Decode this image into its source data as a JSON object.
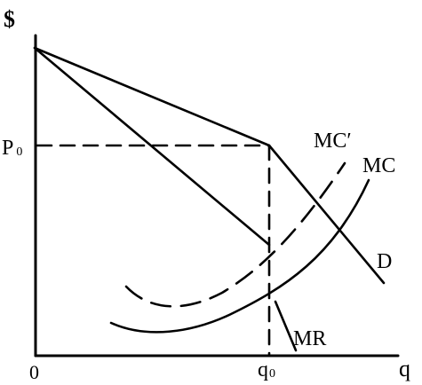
{
  "axes": {
    "y_label": "$",
    "x_label": "q",
    "origin_label": "0",
    "price_tick": "P",
    "price_sub": "0",
    "qty_tick": "q",
    "qty_sub": "0"
  },
  "curves": {
    "mc_prime": "MC′",
    "mc": "MC",
    "demand": "D",
    "mr": "MR"
  }
}
